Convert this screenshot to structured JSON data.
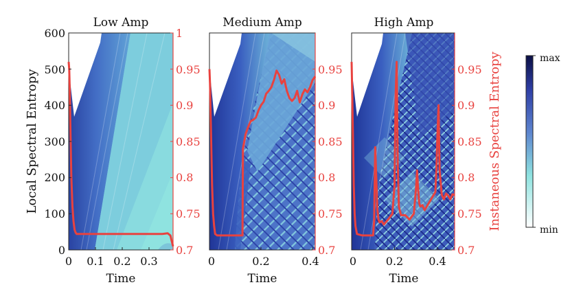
{
  "figure": {
    "left_ylabel": "Local Spectral Entropy",
    "right_ylabel": "Instaneous Spectral Entropy",
    "xlabel": "Time"
  },
  "colorbar": {
    "max_label": "max",
    "min_label": "min",
    "colors": [
      "#ffffff",
      "#8fe3e0",
      "#5e86cf",
      "#2f3fa6",
      "#0b0f44"
    ]
  },
  "chart_data": [
    {
      "type": "heatmap+line",
      "title": "Low Amp",
      "xlabel": "Time",
      "xlim": [
        0,
        0.39
      ],
      "xticks": [
        0,
        0.1,
        0.2,
        0.3
      ],
      "xtick_labels": [
        "0",
        "0.1",
        "0.2",
        "0.3"
      ],
      "ylim_left": [
        0,
        600
      ],
      "yticks_left": [
        0,
        100,
        200,
        300,
        400,
        500,
        600
      ],
      "ylim_right": [
        0.7,
        1.0
      ],
      "yticks_right": [
        0.7,
        0.75,
        0.8,
        0.85,
        0.9,
        0.95,
        1
      ],
      "ytick_labels_right": [
        "0.7",
        "0.75",
        "0.8",
        "0.85",
        "0.9",
        "0.95",
        "1"
      ],
      "line_color": "#e8423f",
      "line": {
        "x": [
          0,
          0.002,
          0.004,
          0.006,
          0.01,
          0.014,
          0.018,
          0.022,
          0.026,
          0.03,
          0.05,
          0.1,
          0.15,
          0.2,
          0.25,
          0.3,
          0.35,
          0.37,
          0.38,
          0.385,
          0.39
        ],
        "y": [
          0.96,
          0.95,
          0.92,
          0.88,
          0.8,
          0.76,
          0.74,
          0.728,
          0.724,
          0.722,
          0.722,
          0.722,
          0.722,
          0.722,
          0.722,
          0.722,
          0.722,
          0.723,
          0.72,
          0.712,
          0.705
        ]
      }
    },
    {
      "type": "heatmap+line",
      "title": "Medium Amp",
      "xlabel": "Time",
      "xlim": [
        0,
        0.41
      ],
      "xticks": [
        0,
        0.2,
        0.4
      ],
      "xtick_labels": [
        "0",
        "0.2",
        "0.4"
      ],
      "ylim_left": [
        0,
        600
      ],
      "ylim_right": [
        0.7,
        1.0
      ],
      "yticks_right": [
        0.7,
        0.75,
        0.8,
        0.85,
        0.9,
        0.95
      ],
      "ytick_labels_right": [
        "0.7",
        "0.75",
        "0.8",
        "0.85",
        "0.9",
        "0.95"
      ],
      "line_color": "#e8423f",
      "line": {
        "x": [
          0,
          0.002,
          0.006,
          0.01,
          0.014,
          0.018,
          0.022,
          0.03,
          0.08,
          0.12,
          0.128,
          0.13,
          0.14,
          0.15,
          0.16,
          0.17,
          0.18,
          0.19,
          0.2,
          0.21,
          0.22,
          0.23,
          0.24,
          0.25,
          0.26,
          0.27,
          0.28,
          0.29,
          0.3,
          0.31,
          0.32,
          0.33,
          0.34,
          0.35,
          0.36,
          0.37,
          0.38,
          0.39,
          0.4,
          0.41
        ],
        "y": [
          0.95,
          0.93,
          0.86,
          0.79,
          0.75,
          0.733,
          0.722,
          0.72,
          0.72,
          0.72,
          0.72,
          0.84,
          0.86,
          0.87,
          0.878,
          0.88,
          0.883,
          0.893,
          0.9,
          0.905,
          0.916,
          0.92,
          0.925,
          0.935,
          0.948,
          0.942,
          0.93,
          0.936,
          0.92,
          0.91,
          0.906,
          0.91,
          0.92,
          0.904,
          0.915,
          0.922,
          0.918,
          0.925,
          0.935,
          0.94
        ]
      }
    },
    {
      "type": "heatmap+line",
      "title": "High Amp",
      "xlabel": "Time",
      "xlim": [
        0,
        0.48
      ],
      "xticks": [
        0,
        0.2,
        0.4
      ],
      "xtick_labels": [
        "0",
        "0.2",
        "0.4"
      ],
      "ylim_left": [
        0,
        600
      ],
      "ylim_right": [
        0.7,
        1.0
      ],
      "yticks_right": [
        0.7,
        0.75,
        0.8,
        0.85,
        0.9,
        0.95
      ],
      "ytick_labels_right": [
        "0.7",
        "0.75",
        "0.8",
        "0.85",
        "0.9",
        "0.95"
      ],
      "line_color": "#e8423f",
      "line": {
        "x": [
          0,
          0.002,
          0.006,
          0.01,
          0.014,
          0.018,
          0.025,
          0.05,
          0.08,
          0.1,
          0.105,
          0.11,
          0.115,
          0.12,
          0.125,
          0.13,
          0.14,
          0.15,
          0.17,
          0.19,
          0.2,
          0.205,
          0.21,
          0.215,
          0.22,
          0.23,
          0.25,
          0.27,
          0.29,
          0.3,
          0.305,
          0.31,
          0.315,
          0.32,
          0.33,
          0.34,
          0.36,
          0.38,
          0.39,
          0.395,
          0.4,
          0.405,
          0.41,
          0.42,
          0.43,
          0.44,
          0.45,
          0.46,
          0.47,
          0.48
        ],
        "y": [
          0.96,
          0.93,
          0.86,
          0.79,
          0.75,
          0.733,
          0.722,
          0.72,
          0.72,
          0.72,
          0.74,
          0.842,
          0.8,
          0.756,
          0.742,
          0.738,
          0.74,
          0.735,
          0.742,
          0.75,
          0.79,
          0.915,
          0.96,
          0.82,
          0.76,
          0.748,
          0.748,
          0.742,
          0.75,
          0.785,
          0.81,
          0.783,
          0.765,
          0.76,
          0.762,
          0.755,
          0.765,
          0.775,
          0.78,
          0.81,
          0.86,
          0.9,
          0.81,
          0.776,
          0.77,
          0.778,
          0.775,
          0.77,
          0.777,
          0.776
        ]
      }
    }
  ]
}
